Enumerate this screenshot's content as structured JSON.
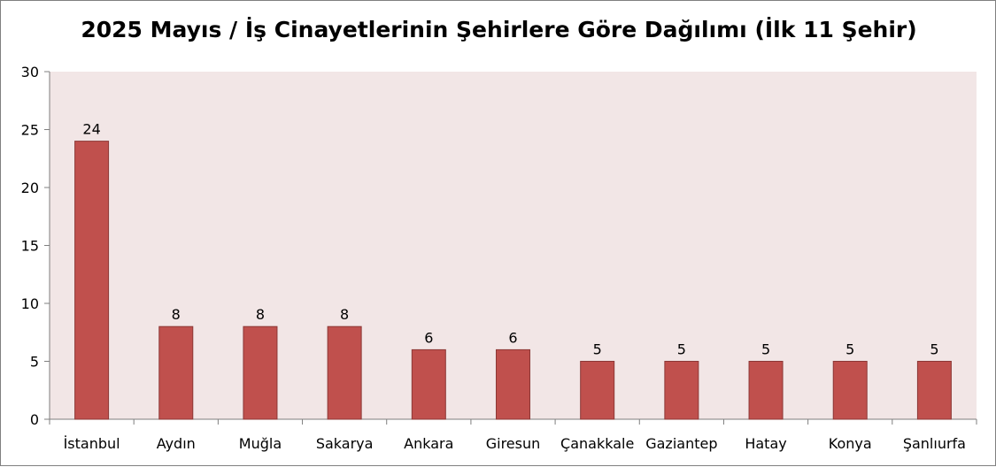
{
  "chart_data": {
    "type": "bar",
    "title": "2025 Mayıs  / İş Cinayetlerinin Şehirlere Göre Dağılımı (İlk 11 Şehir)",
    "xlabel": "",
    "ylabel": "",
    "categories": [
      "İstanbul",
      "Aydın",
      "Muğla",
      "Sakarya",
      "Ankara",
      "Giresun",
      "Çanakkale",
      "Gaziantep",
      "Hatay",
      "Konya",
      "Şanlıurfa"
    ],
    "values": [
      24,
      8,
      8,
      8,
      6,
      6,
      5,
      5,
      5,
      5,
      5
    ],
    "ylim": [
      0,
      30
    ],
    "yticks": [
      "0",
      "5",
      "10",
      "15",
      "20",
      "25",
      "30"
    ],
    "grid": false,
    "legend": "none",
    "colors": {
      "bar_fill": "#c0504d",
      "bar_stroke": "#8c3836",
      "plot_background": "#f2e6e6",
      "axis": "#7f7f7f"
    }
  }
}
